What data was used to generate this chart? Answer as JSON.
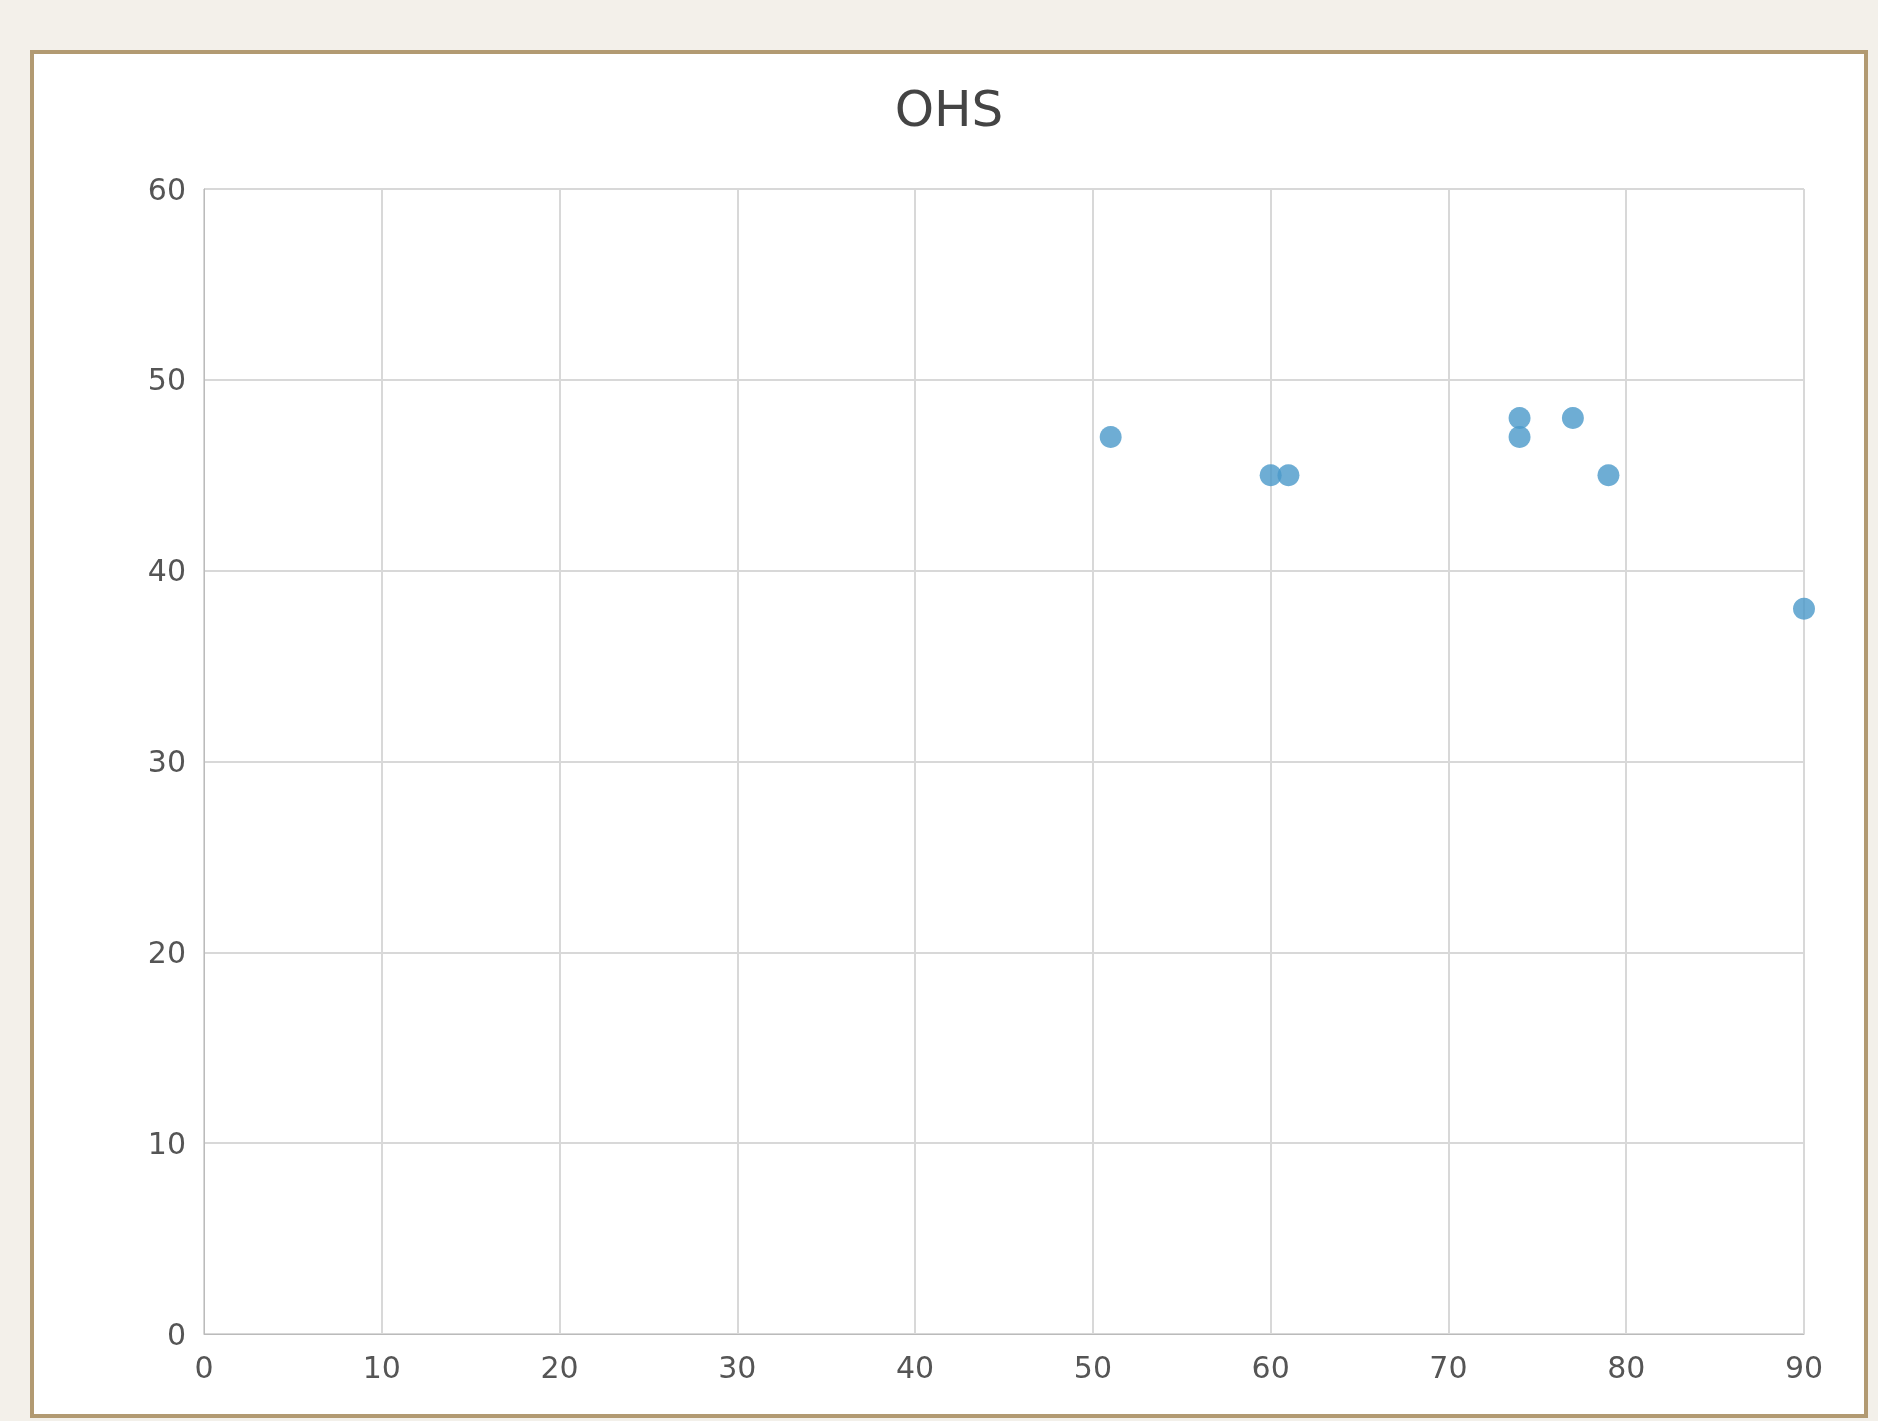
{
  "chart_data": {
    "type": "scatter",
    "title": "OHS",
    "x": [
      51,
      60,
      61,
      74,
      74,
      77,
      79,
      90
    ],
    "values": [
      47,
      45,
      45,
      48,
      47,
      48,
      45,
      38
    ],
    "color": "#4a98c9",
    "marker": "circle",
    "xlim": [
      0,
      90
    ],
    "xticks": [
      0,
      10,
      20,
      30,
      40,
      50,
      60,
      70,
      80,
      90
    ],
    "ylim": [
      0,
      60
    ],
    "yticks": [
      0,
      10,
      20,
      30,
      40,
      50,
      60
    ],
    "grid": true
  }
}
